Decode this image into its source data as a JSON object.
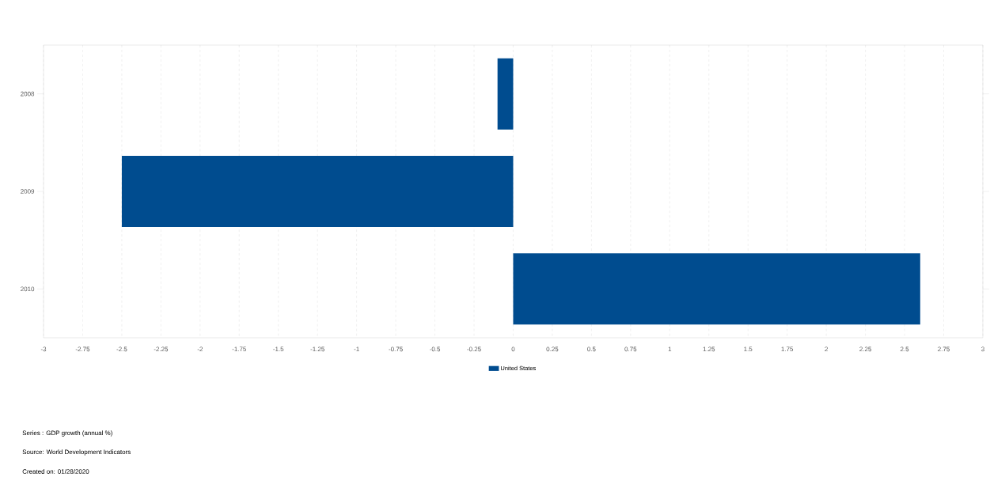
{
  "chart_data": {
    "type": "bar",
    "orientation": "horizontal",
    "categories": [
      "2008",
      "2009",
      "2010"
    ],
    "series": [
      {
        "name": "United States",
        "color": "#004c8f",
        "values": [
          -0.1,
          -2.5,
          2.6
        ]
      }
    ],
    "xlim": [
      -3,
      3
    ],
    "xticks": [
      -3,
      -2.75,
      -2.5,
      -2.25,
      -2,
      -1.75,
      -1.5,
      -1.25,
      -1,
      -0.75,
      -0.5,
      -0.25,
      0,
      0.25,
      0.5,
      0.75,
      1,
      1.25,
      1.5,
      1.75,
      2,
      2.25,
      2.5,
      2.75,
      3
    ],
    "grid": "x",
    "legend": "bottom",
    "annotations": [
      "Series : GDP growth (annual %)",
      "Source: World Development Indicators",
      "Created on: 01/28/2020"
    ]
  }
}
